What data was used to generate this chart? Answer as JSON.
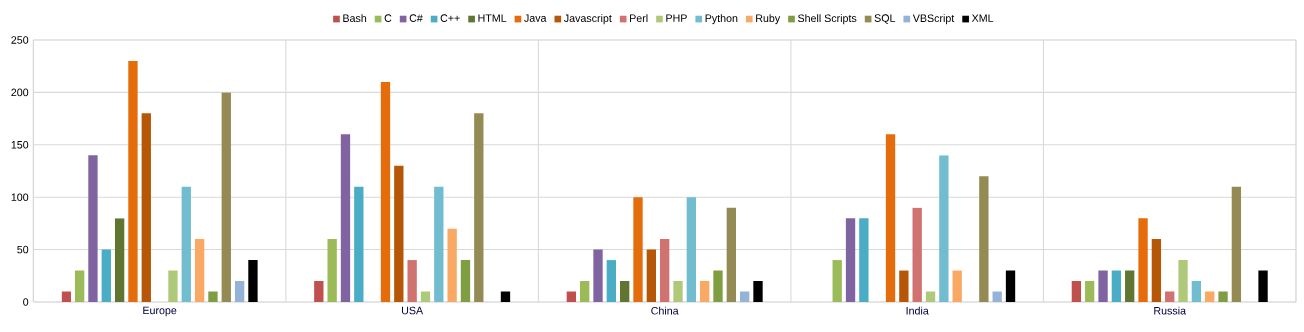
{
  "chart_data": {
    "type": "bar",
    "categories": [
      "Europe",
      "USA",
      "China",
      "India",
      "Russia"
    ],
    "series": [
      {
        "name": "Bash",
        "color": "#c0504d",
        "values": [
          10,
          20,
          10,
          0,
          20
        ]
      },
      {
        "name": "C",
        "color": "#9bbb59",
        "values": [
          30,
          60,
          20,
          40,
          20
        ]
      },
      {
        "name": "C#",
        "color": "#8064a2",
        "values": [
          140,
          160,
          50,
          80,
          30
        ]
      },
      {
        "name": "C++",
        "color": "#4bacc6",
        "values": [
          50,
          110,
          40,
          80,
          30
        ]
      },
      {
        "name": "HTML",
        "color": "#5f7530",
        "values": [
          80,
          0,
          20,
          0,
          30
        ]
      },
      {
        "name": "Java",
        "color": "#e46c0a",
        "values": [
          230,
          210,
          100,
          160,
          80
        ]
      },
      {
        "name": "Javascript",
        "color": "#b65708",
        "values": [
          180,
          130,
          50,
          30,
          60
        ]
      },
      {
        "name": "Perl",
        "color": "#d07270",
        "values": [
          0,
          40,
          60,
          90,
          10
        ]
      },
      {
        "name": "PHP",
        "color": "#afc97a",
        "values": [
          30,
          10,
          20,
          10,
          40
        ]
      },
      {
        "name": "Python",
        "color": "#72bccf",
        "values": [
          110,
          110,
          100,
          140,
          20
        ]
      },
      {
        "name": "Ruby",
        "color": "#f9a964",
        "values": [
          60,
          70,
          20,
          30,
          10
        ]
      },
      {
        "name": "Shell Scripts",
        "color": "#7f9d41",
        "values": [
          10,
          40,
          30,
          0,
          10
        ]
      },
      {
        "name": "SQL",
        "color": "#948a54",
        "values": [
          200,
          180,
          90,
          120,
          110
        ]
      },
      {
        "name": "VBScript",
        "color": "#95b3d7",
        "values": [
          20,
          0,
          10,
          10,
          0
        ]
      },
      {
        "name": "XML",
        "color": "#000000",
        "values": [
          40,
          10,
          20,
          30,
          30
        ]
      }
    ],
    "ylim": [
      0,
      250
    ],
    "yticks": [
      0,
      50,
      100,
      150,
      200,
      250
    ],
    "grid": true,
    "legend": "top"
  }
}
